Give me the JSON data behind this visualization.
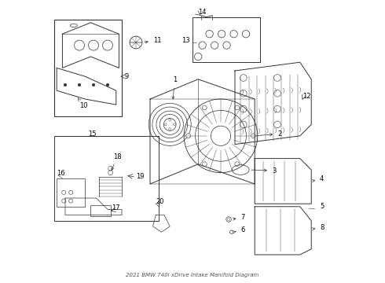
{
  "title": "2021 BMW 740i xDrive Intake Manifold Diagram",
  "bg_color": "#ffffff",
  "line_color": "#333333",
  "label_color": "#000000",
  "label_fontsize": 6,
  "parts": {
    "1": {
      "label": "1"
    },
    "2": {
      "label": "2"
    },
    "3": {
      "label": "3"
    },
    "4": {
      "label": "4"
    },
    "5": {
      "label": "5"
    },
    "6": {
      "label": "6"
    },
    "7": {
      "label": "7"
    },
    "8": {
      "label": "8"
    },
    "9": {
      "label": "9"
    },
    "10": {
      "label": "10"
    },
    "11": {
      "label": "11"
    },
    "12": {
      "label": "12"
    },
    "13": {
      "label": "13"
    },
    "14": {
      "label": "14"
    },
    "15": {
      "label": "15"
    },
    "16": {
      "label": "16"
    },
    "17": {
      "label": "17"
    },
    "18": {
      "label": "18"
    },
    "19": {
      "label": "19"
    },
    "20": {
      "label": "20"
    }
  }
}
